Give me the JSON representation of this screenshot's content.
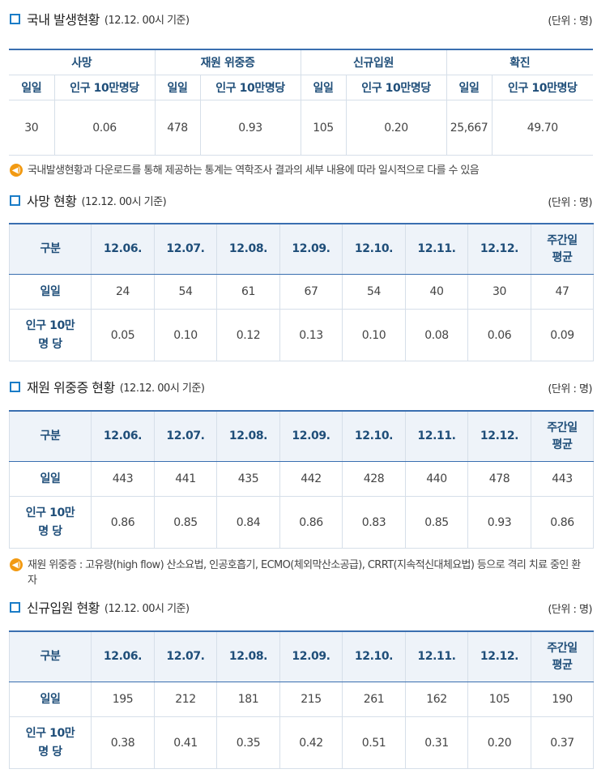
{
  "summary": {
    "title": "국내 발생현황",
    "date": "(12.12. 00시 기준)",
    "unit": "(단위 : 명)",
    "groups": [
      "사망",
      "재원 위중증",
      "신규입원",
      "확진"
    ],
    "subheaders": [
      "일일",
      "인구 10만명당",
      "일일",
      "인구 10만명당",
      "일일",
      "인구 10만명당",
      "일일",
      "인구 10만명당"
    ],
    "values": [
      "30",
      "0.06",
      "478",
      "0.93",
      "105",
      "0.20",
      "25,667",
      "49.70"
    ],
    "note": "국내발생현황과 다운로드를 통해 제공하는 통계는 역학조사 결과의 세부 내용에 따라 일시적으로 다를 수 있음"
  },
  "deaths": {
    "title": "사망 현황",
    "date": "(12.12. 00시 기준)",
    "unit": "(단위 : 명)",
    "headers": [
      "구분",
      "12.06.",
      "12.07.",
      "12.08.",
      "12.09.",
      "12.10.",
      "12.11.",
      "12.12.",
      "주간일\n평균"
    ],
    "rows": [
      {
        "label": "일일",
        "values": [
          "24",
          "54",
          "61",
          "67",
          "54",
          "40",
          "30",
          "47"
        ]
      },
      {
        "label": "인구 10만\n명 당",
        "values": [
          "0.05",
          "0.10",
          "0.12",
          "0.13",
          "0.10",
          "0.08",
          "0.06",
          "0.09"
        ]
      }
    ]
  },
  "severe": {
    "title": "재원 위중증 현황",
    "date": "(12.12. 00시 기준)",
    "unit": "(단위 : 명)",
    "headers": [
      "구분",
      "12.06.",
      "12.07.",
      "12.08.",
      "12.09.",
      "12.10.",
      "12.11.",
      "12.12.",
      "주간일\n평균"
    ],
    "rows": [
      {
        "label": "일일",
        "values": [
          "443",
          "441",
          "435",
          "442",
          "428",
          "440",
          "478",
          "443"
        ]
      },
      {
        "label": "인구 10만\n명 당",
        "values": [
          "0.86",
          "0.85",
          "0.84",
          "0.86",
          "0.83",
          "0.85",
          "0.93",
          "0.86"
        ]
      }
    ],
    "note": "재원 위중증 : 고유량(high flow) 산소요법, 인공호흡기, ECMO(체외막산소공급), CRRT(지속적신대체요법) 등으로 격리 치료 중인 환자"
  },
  "admissions": {
    "title": "신규입원 현황",
    "date": "(12.12. 00시 기준)",
    "unit": "(단위 : 명)",
    "headers": [
      "구분",
      "12.06.",
      "12.07.",
      "12.08.",
      "12.09.",
      "12.10.",
      "12.11.",
      "12.12.",
      "주간일\n평균"
    ],
    "rows": [
      {
        "label": "일일",
        "values": [
          "195",
          "212",
          "181",
          "215",
          "261",
          "162",
          "105",
          "190"
        ]
      },
      {
        "label": "인구 10만\n명 당",
        "values": [
          "0.38",
          "0.41",
          "0.35",
          "0.42",
          "0.51",
          "0.31",
          "0.20",
          "0.37"
        ]
      }
    ]
  },
  "icons": {
    "bullet": "square-bullet-icon",
    "note": "speaker-icon"
  },
  "colors": {
    "accent": "#1a7cc7",
    "header_text": "#1f4e79",
    "header_bg": "#eef3f9",
    "note_icon": "#f29a12"
  }
}
